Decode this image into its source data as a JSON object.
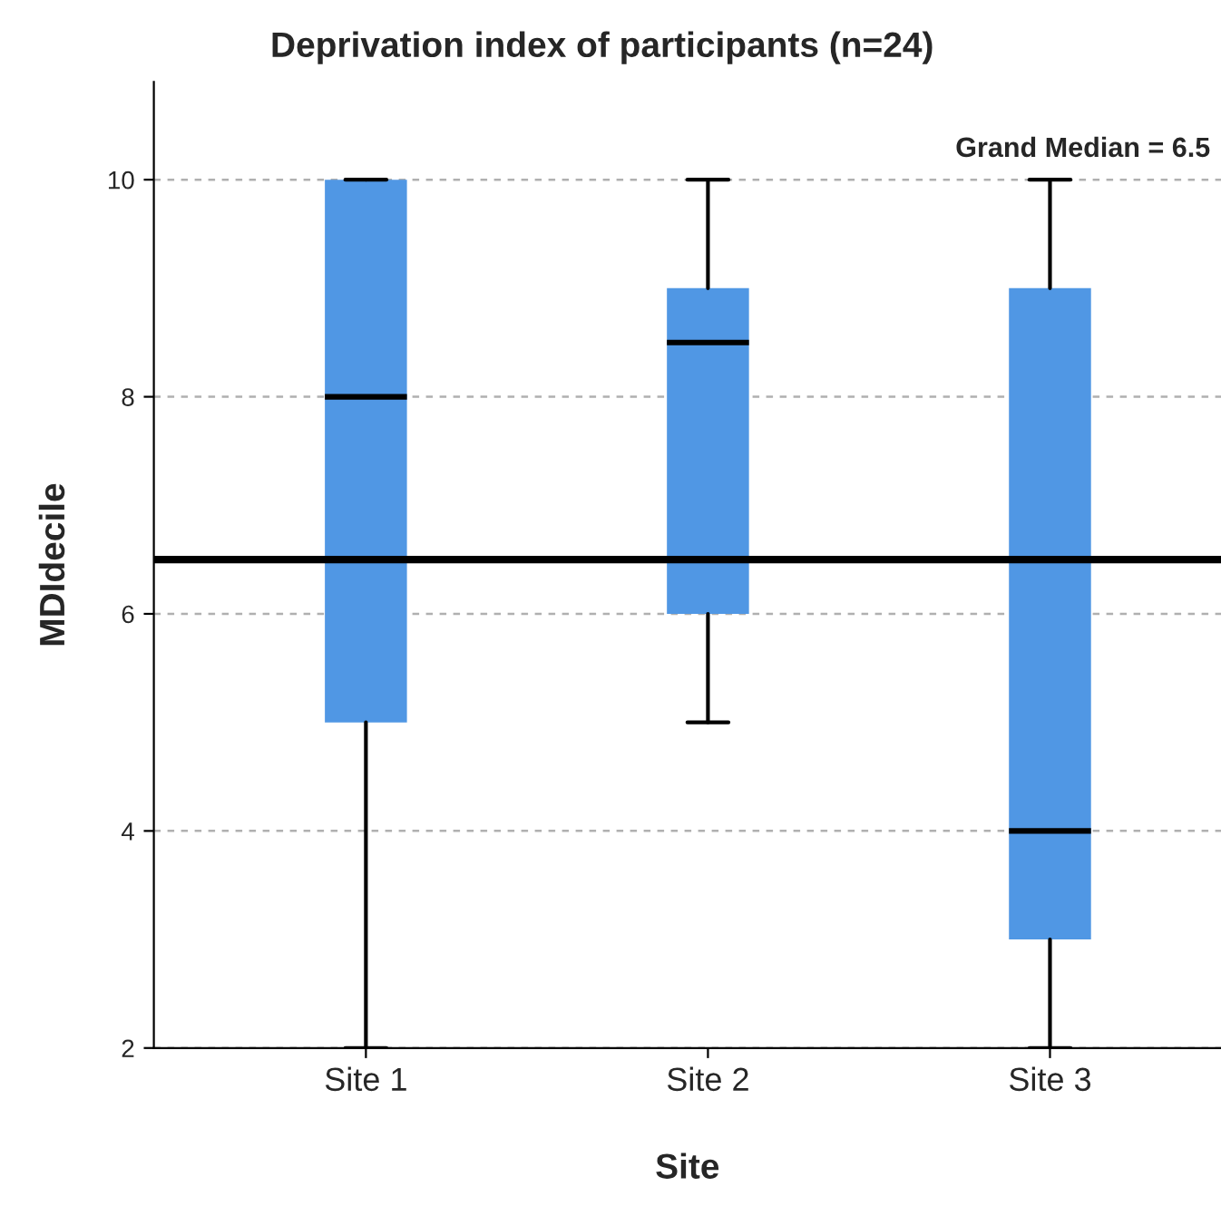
{
  "chart_data": {
    "type": "box",
    "title": "Deprivation index of participants (n=24)",
    "xlabel": "Site",
    "ylabel": "MDIdecile",
    "categories": [
      "Site 1",
      "Site 2",
      "Site 3"
    ],
    "boxes": [
      {
        "low": 2,
        "q1": 5,
        "median": 8,
        "q3": 10,
        "high": 10
      },
      {
        "low": 5,
        "q1": 6,
        "median": 8.5,
        "q3": 9,
        "high": 10
      },
      {
        "low": 2,
        "q1": 3,
        "median": 4,
        "q3": 9,
        "high": 10
      }
    ],
    "color": "#5097e4",
    "ylim": [
      2,
      10.9
    ],
    "yticks": [
      2,
      4,
      6,
      8,
      10
    ],
    "grid": "y",
    "ref_lines": [
      {
        "axis": "y",
        "value": 6.5,
        "label": "Grand Median = 6.5",
        "color": "#000000",
        "line_style": "solid"
      }
    ]
  }
}
